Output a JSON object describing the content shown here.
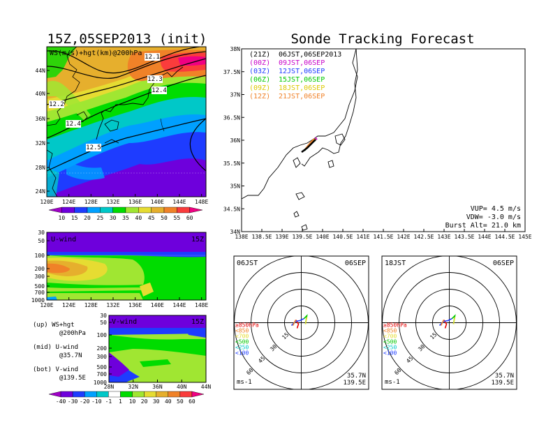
{
  "titles": {
    "left": "15Z,05SEP2013 (init)",
    "right": "Sonde Tracking Forecast"
  },
  "map": {
    "label": "WS(m/s)+hgt(km)@200hPa",
    "lat_labels": [
      "44N",
      "40N",
      "36N",
      "32N",
      "28N",
      "24N"
    ],
    "lon_labels": [
      "120E",
      "124E",
      "128E",
      "132E",
      "136E",
      "140E",
      "144E",
      "148E"
    ],
    "contour_labels": [
      "12.1",
      "12.3",
      "12.4",
      "12.2",
      "12.4",
      "12.5"
    ],
    "colorbar": [
      "10",
      "15",
      "20",
      "25",
      "30",
      "35",
      "40",
      "45",
      "50",
      "55",
      "60"
    ],
    "colors": [
      "#a000c8",
      "#6e00dc",
      "#1e3cff",
      "#00a0ff",
      "#00c8c8",
      "#00dc00",
      "#a0e632",
      "#e6dc32",
      "#e6af2d",
      "#f08228",
      "#fa3c3c",
      "#f00082"
    ]
  },
  "uwind": {
    "label": "U-wind",
    "time": "15Z",
    "p_labels": [
      "30",
      "50",
      "100",
      "200",
      "300",
      "500",
      "700",
      "1000"
    ],
    "lon_labels": [
      "120E",
      "124E",
      "128E",
      "132E",
      "136E",
      "140E",
      "144E",
      "148E"
    ]
  },
  "vwind": {
    "label": "V-wind",
    "time": "15Z",
    "p_labels": [
      "30",
      "50",
      "100",
      "200",
      "300",
      "500",
      "700",
      "1000"
    ],
    "lat_labels": [
      "28N",
      "32N",
      "36N",
      "40N",
      "44N"
    ]
  },
  "notes": [
    "(up) WS+hgt",
    "@200hPa",
    "(mid) U-wind",
    "@35.7N",
    "(bot) V-wind",
    "@139.5E"
  ],
  "bottom_colorbar": [
    "-40",
    "-30",
    "-20",
    "-10",
    "-1",
    "1",
    "10",
    "20",
    "30",
    "40",
    "50",
    "60"
  ],
  "track": {
    "legend": [
      {
        "code": "(21Z)",
        "text": "06JST,06SEP2013",
        "color": "#000000"
      },
      {
        "code": "(00Z)",
        "text": "09JST,06SEP",
        "color": "#c800c8"
      },
      {
        "code": "(03Z)",
        "text": "12JST,06SEP",
        "color": "#1e3cff"
      },
      {
        "code": "(06Z)",
        "text": "15JST,06SEP",
        "color": "#00c800"
      },
      {
        "code": "(09Z)",
        "text": "18JST,06SEP",
        "color": "#dcc800"
      },
      {
        "code": "(12Z)",
        "text": "21JST,06SEP",
        "color": "#f08228"
      }
    ],
    "lat_labels": [
      "38N",
      "37.5N",
      "37N",
      "36.5N",
      "36N",
      "35.5N",
      "35N",
      "34.5N",
      "34N"
    ],
    "lon_labels": [
      "138E",
      "138.5E",
      "139E",
      "139.5E",
      "140E",
      "140.5E",
      "141E",
      "141.5E",
      "142E",
      "142.5E",
      "143E",
      "143.5E",
      "144E",
      "144.5E",
      "145E"
    ],
    "info": [
      "VUP=  4.5 m/s",
      "VDW= -3.0 m/s",
      "Burst Alt= 21.0 km"
    ]
  },
  "hodo1": {
    "time": "06JST",
    "date": "06SEP",
    "rings": [
      "15",
      "30",
      "45",
      "60"
    ],
    "unit": "ms-1",
    "lat": "35.7N",
    "lon": "139.5E"
  },
  "hodo2": {
    "time": "18JST",
    "date": "06SEP",
    "rings": [
      "15",
      "30",
      "45",
      "60"
    ],
    "unit": "ms-1",
    "lat": "35.7N",
    "lon": "139.5E"
  },
  "hodo_levels": [
    {
      "text": "≥850hPa",
      "color": "#e60000"
    },
    {
      "text": "<850",
      "color": "#f08228"
    },
    {
      "text": "<700",
      "color": "#e6dc32"
    },
    {
      "text": "<500",
      "color": "#00c800"
    },
    {
      "text": "<250",
      "color": "#00c8c8"
    },
    {
      "text": "<100",
      "color": "#1e3cff"
    }
  ]
}
